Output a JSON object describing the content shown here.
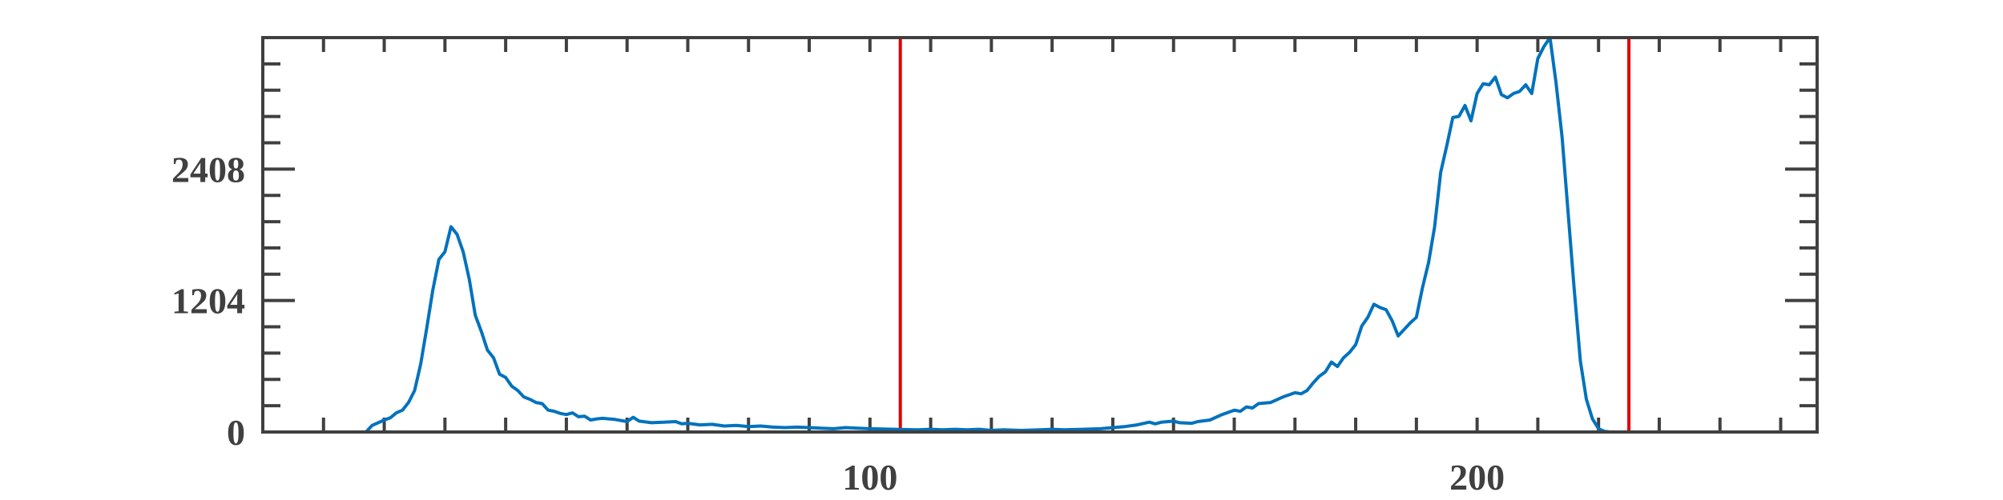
{
  "chart_data": {
    "type": "line",
    "title": "",
    "xlabel": "",
    "ylabel": "",
    "xlim": [
      0,
      256
    ],
    "ylim": [
      0,
      3612
    ],
    "x_ticks": [
      10,
      20,
      30,
      40,
      50,
      60,
      70,
      80,
      90,
      100,
      110,
      120,
      130,
      140,
      150,
      160,
      170,
      180,
      190,
      200,
      210,
      220,
      230,
      240,
      250
    ],
    "x_tick_labels": [
      {
        "value": 100,
        "label": "100"
      },
      {
        "value": 200,
        "label": "200"
      }
    ],
    "y_ticks": [
      0,
      240.8,
      481.6,
      722.4,
      963.2,
      1204,
      1444.8,
      1685.6,
      1926.4,
      2167.2,
      2408,
      2648.8,
      2889.6,
      3130.4,
      3371.2,
      3612
    ],
    "y_tick_labels": [
      {
        "value": 0,
        "label": "0"
      },
      {
        "value": 1204,
        "label": "1204"
      },
      {
        "value": 2408,
        "label": "2408"
      }
    ],
    "grid": false,
    "colors": {
      "series": "#0072BD",
      "threshold": "#E00000",
      "axis": "#404040"
    },
    "vertical_lines": [
      105,
      225
    ],
    "series": [
      {
        "points": [
          [
            0,
            0
          ],
          [
            10,
            0
          ],
          [
            17,
            0
          ],
          [
            18,
            60
          ],
          [
            20,
            110
          ],
          [
            21,
            130
          ],
          [
            22,
            175
          ],
          [
            23,
            200
          ],
          [
            24,
            270
          ],
          [
            25,
            380
          ],
          [
            26,
            620
          ],
          [
            27,
            950
          ],
          [
            28,
            1300
          ],
          [
            29,
            1580
          ],
          [
            30,
            1650
          ],
          [
            31,
            1880
          ],
          [
            32,
            1810
          ],
          [
            33,
            1650
          ],
          [
            34,
            1400
          ],
          [
            35,
            1070
          ],
          [
            36,
            920
          ],
          [
            37,
            750
          ],
          [
            38,
            680
          ],
          [
            39,
            530
          ],
          [
            40,
            500
          ],
          [
            41,
            420
          ],
          [
            42,
            380
          ],
          [
            43,
            320
          ],
          [
            44,
            300
          ],
          [
            45,
            270
          ],
          [
            46,
            260
          ],
          [
            47,
            200
          ],
          [
            48,
            190
          ],
          [
            49,
            170
          ],
          [
            50,
            160
          ],
          [
            51,
            175
          ],
          [
            52,
            140
          ],
          [
            53,
            145
          ],
          [
            54,
            110
          ],
          [
            55,
            120
          ],
          [
            56,
            125
          ],
          [
            57,
            120
          ],
          [
            58,
            115
          ],
          [
            60,
            95
          ],
          [
            61,
            135
          ],
          [
            62,
            100
          ],
          [
            64,
            85
          ],
          [
            66,
            90
          ],
          [
            68,
            95
          ],
          [
            69,
            75
          ],
          [
            70,
            80
          ],
          [
            72,
            65
          ],
          [
            74,
            70
          ],
          [
            76,
            55
          ],
          [
            78,
            60
          ],
          [
            80,
            50
          ],
          [
            82,
            55
          ],
          [
            84,
            45
          ],
          [
            86,
            40
          ],
          [
            88,
            45
          ],
          [
            90,
            40
          ],
          [
            92,
            35
          ],
          [
            94,
            30
          ],
          [
            96,
            40
          ],
          [
            98,
            35
          ],
          [
            100,
            30
          ],
          [
            104,
            25
          ],
          [
            108,
            20
          ],
          [
            110,
            25
          ],
          [
            112,
            20
          ],
          [
            114,
            25
          ],
          [
            116,
            20
          ],
          [
            118,
            25
          ],
          [
            120,
            15
          ],
          [
            122,
            20
          ],
          [
            125,
            15
          ],
          [
            128,
            20
          ],
          [
            130,
            25
          ],
          [
            132,
            20
          ],
          [
            135,
            25
          ],
          [
            138,
            30
          ],
          [
            140,
            40
          ],
          [
            142,
            50
          ],
          [
            144,
            65
          ],
          [
            146,
            90
          ],
          [
            147,
            75
          ],
          [
            148,
            90
          ],
          [
            150,
            100
          ],
          [
            151,
            85
          ],
          [
            153,
            80
          ],
          [
            154,
            95
          ],
          [
            156,
            110
          ],
          [
            158,
            160
          ],
          [
            160,
            200
          ],
          [
            161,
            190
          ],
          [
            162,
            230
          ],
          [
            163,
            220
          ],
          [
            164,
            260
          ],
          [
            166,
            270
          ],
          [
            168,
            320
          ],
          [
            169,
            340
          ],
          [
            170,
            360
          ],
          [
            171,
            350
          ],
          [
            172,
            380
          ],
          [
            173,
            450
          ],
          [
            174,
            510
          ],
          [
            175,
            550
          ],
          [
            176,
            640
          ],
          [
            177,
            600
          ],
          [
            178,
            680
          ],
          [
            179,
            730
          ],
          [
            180,
            800
          ],
          [
            181,
            970
          ],
          [
            182,
            1050
          ],
          [
            183,
            1170
          ],
          [
            184,
            1140
          ],
          [
            185,
            1120
          ],
          [
            186,
            1020
          ],
          [
            187,
            880
          ],
          [
            188,
            940
          ],
          [
            189,
            1000
          ],
          [
            190,
            1050
          ],
          [
            191,
            1320
          ],
          [
            192,
            1550
          ],
          [
            193,
            1880
          ],
          [
            194,
            2380
          ],
          [
            195,
            2620
          ],
          [
            196,
            2880
          ],
          [
            197,
            2890
          ],
          [
            198,
            2990
          ],
          [
            199,
            2850
          ],
          [
            200,
            3100
          ],
          [
            201,
            3190
          ],
          [
            202,
            3180
          ],
          [
            203,
            3250
          ],
          [
            204,
            3090
          ],
          [
            205,
            3060
          ],
          [
            206,
            3100
          ],
          [
            207,
            3120
          ],
          [
            208,
            3180
          ],
          [
            209,
            3100
          ],
          [
            210,
            3420
          ],
          [
            211,
            3530
          ],
          [
            212,
            3612
          ],
          [
            213,
            3200
          ],
          [
            214,
            2700
          ],
          [
            215,
            2000
          ],
          [
            216,
            1300
          ],
          [
            217,
            650
          ],
          [
            218,
            300
          ],
          [
            219,
            120
          ],
          [
            220,
            30
          ],
          [
            221,
            5
          ],
          [
            222,
            0
          ],
          [
            230,
            0
          ],
          [
            256,
            0
          ]
        ]
      }
    ]
  }
}
